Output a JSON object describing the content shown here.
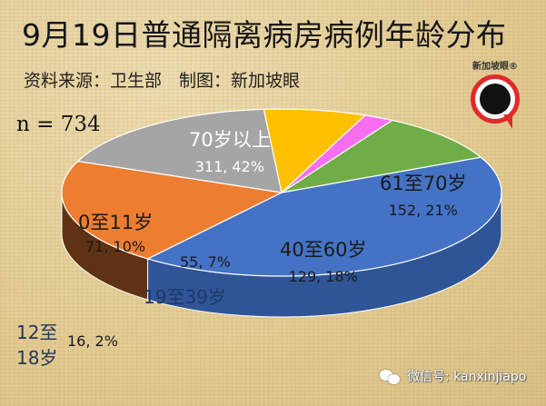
{
  "header": {
    "title": "9月19日普通隔离病房病例年龄分布",
    "source_label": "资料来源：卫生部",
    "made_by_label": "制图：新加坡眼",
    "sample_size": "n = 734"
  },
  "logo": {
    "text": "新加坡眼®"
  },
  "footer": {
    "wechat": "微信号: kanxinjiapo"
  },
  "chart_data": {
    "type": "pie",
    "style": "3d-exploded-tilt",
    "title": "9月19日普通隔离病房病例年龄分布",
    "total": 734,
    "slices": [
      {
        "label": "70岁以上",
        "value": 311,
        "percent": 42,
        "text": "311, 42%",
        "color": "#4472c4",
        "side": "#2f5597",
        "label_color": "#ffffff"
      },
      {
        "label": "61至70岁",
        "value": 152,
        "percent": 21,
        "text": "152, 21%",
        "color": "#ed7d31",
        "side": "#5e3213",
        "label_color": "#1a1a1a"
      },
      {
        "label": "40至60岁",
        "value": 129,
        "percent": 18,
        "text": "129, 18%",
        "color": "#a5a5a5",
        "side": "#4a4a4a",
        "label_color": "#1a1a1a"
      },
      {
        "label": "19至39岁",
        "value": 55,
        "percent": 7,
        "text": "55, 7%",
        "color": "#ffc000",
        "side": "#b38600",
        "label_color": "#1f3864"
      },
      {
        "label": "12至18岁",
        "value": 16,
        "percent": 2,
        "text": "16, 2%",
        "color": "#f76ff0",
        "side": "#cc55cc",
        "label_color": "#1f3864"
      },
      {
        "label": "0至11岁",
        "value": 71,
        "percent": 10,
        "text": "71, 10%",
        "color": "#70ad47",
        "side": "#548235",
        "label_color": "#1a1a1a"
      }
    ]
  },
  "labels": {
    "s0_name": "70岁以上",
    "s0_val": "311, 42%",
    "s1_name": "61至70岁",
    "s1_val": "152, 21%",
    "s2_name": "40至60岁",
    "s2_val": "129, 18%",
    "s3_name": "19至39岁",
    "s3_val": "55, 7%",
    "s4_name_line1": "12至",
    "s4_name_line2": "18岁",
    "s4_val": "16, 2%",
    "s5_name": "0至11岁",
    "s5_val": "71, 10%"
  }
}
